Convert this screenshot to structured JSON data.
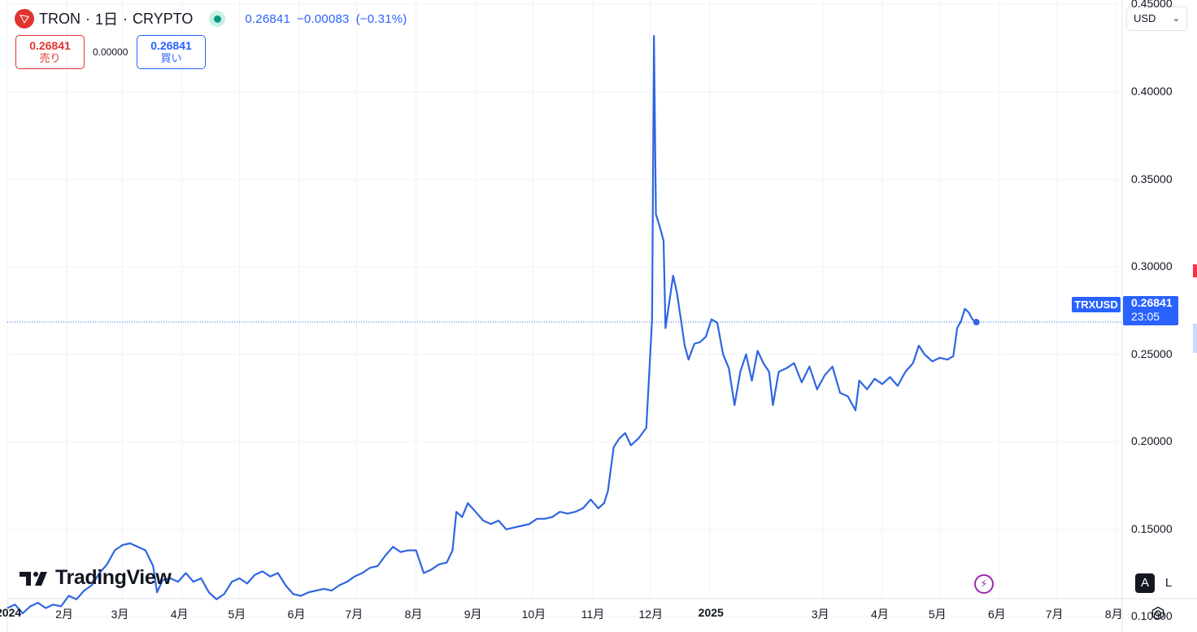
{
  "header": {
    "symbol": "TRON",
    "interval": "1日",
    "exchange": "CRYPTO",
    "separator": "·",
    "last": "0.26841",
    "change": "−0.00083",
    "change_pct": "(−0.31%)"
  },
  "trade": {
    "sell_price": "0.26841",
    "sell_label": "売り",
    "spread": "0.00000",
    "buy_price": "0.26841",
    "buy_label": "買い"
  },
  "currency": {
    "value": "USD",
    "chevron": "⌄"
  },
  "branding": {
    "name": "TradingView"
  },
  "price_tag": {
    "symbol": "TRXUSD",
    "price": "0.26841",
    "countdown": "23:05"
  },
  "scale_buttons": {
    "auto": "A",
    "log": "L"
  },
  "colors": {
    "line": "#2f66e0",
    "accent": "#2962ff",
    "sell": "#e0342f",
    "status_ok": "#089981",
    "grid": "#f0f3fa"
  },
  "icons": [
    "tron-logo-icon",
    "market-open-dot-icon",
    "chevron-down-icon",
    "tradingview-logo-icon",
    "lightning-icon",
    "gear-icon"
  ],
  "chart_data": {
    "type": "line",
    "series": [
      {
        "name": "TRXUSD",
        "points": [
          [
            "2024-01-01",
            0.105
          ],
          [
            "2024-01-05",
            0.107
          ],
          [
            "2024-01-09",
            0.102
          ],
          [
            "2024-01-13",
            0.106
          ],
          [
            "2024-01-17",
            0.108
          ],
          [
            "2024-01-21",
            0.105
          ],
          [
            "2024-01-25",
            0.107
          ],
          [
            "2024-01-29",
            0.106
          ],
          [
            "2024-02-02",
            0.112
          ],
          [
            "2024-02-06",
            0.11
          ],
          [
            "2024-02-10",
            0.115
          ],
          [
            "2024-02-14",
            0.118
          ],
          [
            "2024-02-18",
            0.125
          ],
          [
            "2024-02-22",
            0.13
          ],
          [
            "2024-02-26",
            0.138
          ],
          [
            "2024-03-01",
            0.141
          ],
          [
            "2024-03-05",
            0.142
          ],
          [
            "2024-03-09",
            0.14
          ],
          [
            "2024-03-13",
            0.138
          ],
          [
            "2024-03-17",
            0.129
          ],
          [
            "2024-03-19",
            0.114
          ],
          [
            "2024-03-22",
            0.121
          ],
          [
            "2024-03-26",
            0.122
          ],
          [
            "2024-03-30",
            0.12
          ],
          [
            "2024-04-03",
            0.125
          ],
          [
            "2024-04-07",
            0.12
          ],
          [
            "2024-04-11",
            0.122
          ],
          [
            "2024-04-15",
            0.114
          ],
          [
            "2024-04-19",
            0.11
          ],
          [
            "2024-04-23",
            0.113
          ],
          [
            "2024-04-27",
            0.12
          ],
          [
            "2024-05-01",
            0.122
          ],
          [
            "2024-05-05",
            0.119
          ],
          [
            "2024-05-09",
            0.124
          ],
          [
            "2024-05-13",
            0.126
          ],
          [
            "2024-05-17",
            0.123
          ],
          [
            "2024-05-21",
            0.125
          ],
          [
            "2024-05-25",
            0.118
          ],
          [
            "2024-05-29",
            0.113
          ],
          [
            "2024-06-02",
            0.112
          ],
          [
            "2024-06-06",
            0.114
          ],
          [
            "2024-06-10",
            0.115
          ],
          [
            "2024-06-14",
            0.116
          ],
          [
            "2024-06-18",
            0.115
          ],
          [
            "2024-06-22",
            0.118
          ],
          [
            "2024-06-26",
            0.12
          ],
          [
            "2024-06-30",
            0.123
          ],
          [
            "2024-07-04",
            0.125
          ],
          [
            "2024-07-08",
            0.128
          ],
          [
            "2024-07-12",
            0.129
          ],
          [
            "2024-07-16",
            0.135
          ],
          [
            "2024-07-20",
            0.14
          ],
          [
            "2024-07-24",
            0.137
          ],
          [
            "2024-07-28",
            0.138
          ],
          [
            "2024-08-01",
            0.138
          ],
          [
            "2024-08-05",
            0.125
          ],
          [
            "2024-08-09",
            0.127
          ],
          [
            "2024-08-13",
            0.13
          ],
          [
            "2024-08-17",
            0.131
          ],
          [
            "2024-08-20",
            0.138
          ],
          [
            "2024-08-22",
            0.16
          ],
          [
            "2024-08-25",
            0.157
          ],
          [
            "2024-08-28",
            0.165
          ],
          [
            "2024-09-01",
            0.16
          ],
          [
            "2024-09-05",
            0.155
          ],
          [
            "2024-09-09",
            0.153
          ],
          [
            "2024-09-13",
            0.155
          ],
          [
            "2024-09-17",
            0.15
          ],
          [
            "2024-09-21",
            0.151
          ],
          [
            "2024-09-25",
            0.152
          ],
          [
            "2024-09-29",
            0.153
          ],
          [
            "2024-10-03",
            0.156
          ],
          [
            "2024-10-07",
            0.156
          ],
          [
            "2024-10-11",
            0.157
          ],
          [
            "2024-10-15",
            0.16
          ],
          [
            "2024-10-19",
            0.159
          ],
          [
            "2024-10-23",
            0.16
          ],
          [
            "2024-10-27",
            0.162
          ],
          [
            "2024-10-31",
            0.167
          ],
          [
            "2024-11-04",
            0.162
          ],
          [
            "2024-11-07",
            0.165
          ],
          [
            "2024-11-09",
            0.172
          ],
          [
            "2024-11-12",
            0.197
          ],
          [
            "2024-11-15",
            0.202
          ],
          [
            "2024-11-18",
            0.205
          ],
          [
            "2024-11-21",
            0.198
          ],
          [
            "2024-11-25",
            0.202
          ],
          [
            "2024-11-29",
            0.208
          ],
          [
            "2024-12-02",
            0.27
          ],
          [
            "2024-12-03",
            0.432
          ],
          [
            "2024-12-04",
            0.33
          ],
          [
            "2024-12-06",
            0.323
          ],
          [
            "2024-12-08",
            0.315
          ],
          [
            "2024-12-09",
            0.265
          ],
          [
            "2024-12-11",
            0.28
          ],
          [
            "2024-12-13",
            0.295
          ],
          [
            "2024-12-15",
            0.285
          ],
          [
            "2024-12-17",
            0.27
          ],
          [
            "2024-12-19",
            0.255
          ],
          [
            "2024-12-21",
            0.247
          ],
          [
            "2024-12-24",
            0.256
          ],
          [
            "2024-12-27",
            0.257
          ],
          [
            "2024-12-30",
            0.26
          ],
          [
            "2025-01-02",
            0.27
          ],
          [
            "2025-01-05",
            0.268
          ],
          [
            "2025-01-08",
            0.25
          ],
          [
            "2025-01-11",
            0.242
          ],
          [
            "2025-01-14",
            0.221
          ],
          [
            "2025-01-17",
            0.24
          ],
          [
            "2025-01-20",
            0.25
          ],
          [
            "2025-01-23",
            0.235
          ],
          [
            "2025-01-26",
            0.252
          ],
          [
            "2025-01-29",
            0.245
          ],
          [
            "2025-02-01",
            0.24
          ],
          [
            "2025-02-03",
            0.221
          ],
          [
            "2025-02-06",
            0.24
          ],
          [
            "2025-02-10",
            0.242
          ],
          [
            "2025-02-14",
            0.245
          ],
          [
            "2025-02-18",
            0.234
          ],
          [
            "2025-02-22",
            0.243
          ],
          [
            "2025-02-26",
            0.23
          ],
          [
            "2025-03-02",
            0.238
          ],
          [
            "2025-03-06",
            0.243
          ],
          [
            "2025-03-10",
            0.228
          ],
          [
            "2025-03-14",
            0.226
          ],
          [
            "2025-03-18",
            0.218
          ],
          [
            "2025-03-20",
            0.235
          ],
          [
            "2025-03-24",
            0.23
          ],
          [
            "2025-03-28",
            0.236
          ],
          [
            "2025-04-01",
            0.233
          ],
          [
            "2025-04-05",
            0.237
          ],
          [
            "2025-04-09",
            0.232
          ],
          [
            "2025-04-13",
            0.24
          ],
          [
            "2025-04-17",
            0.245
          ],
          [
            "2025-04-20",
            0.255
          ],
          [
            "2025-04-23",
            0.25
          ],
          [
            "2025-04-27",
            0.246
          ],
          [
            "2025-05-01",
            0.248
          ],
          [
            "2025-05-05",
            0.247
          ],
          [
            "2025-05-08",
            0.249
          ],
          [
            "2025-05-10",
            0.265
          ],
          [
            "2025-05-12",
            0.269
          ],
          [
            "2025-05-14",
            0.276
          ],
          [
            "2025-05-16",
            0.274
          ],
          [
            "2025-05-18",
            0.27
          ],
          [
            "2025-05-20",
            0.2684
          ]
        ]
      }
    ],
    "x_axis_labels": [
      {
        "text": "2024",
        "date": "2024-01-01",
        "bold": true
      },
      {
        "text": "2月",
        "date": "2024-02-01"
      },
      {
        "text": "3月",
        "date": "2024-03-01"
      },
      {
        "text": "4月",
        "date": "2024-04-01"
      },
      {
        "text": "5月",
        "date": "2024-05-01"
      },
      {
        "text": "6月",
        "date": "2024-06-01"
      },
      {
        "text": "7月",
        "date": "2024-07-01"
      },
      {
        "text": "8月",
        "date": "2024-08-01"
      },
      {
        "text": "9月",
        "date": "2024-09-01"
      },
      {
        "text": "10月",
        "date": "2024-10-01"
      },
      {
        "text": "11月",
        "date": "2024-11-01"
      },
      {
        "text": "12月",
        "date": "2024-12-01"
      },
      {
        "text": "2025",
        "date": "2025-01-01",
        "bold": true
      },
      {
        "text": "3月",
        "date": "2025-03-01"
      },
      {
        "text": "4月",
        "date": "2025-04-01"
      },
      {
        "text": "5月",
        "date": "2025-05-01"
      },
      {
        "text": "6月",
        "date": "2025-06-01"
      },
      {
        "text": "7月",
        "date": "2025-07-01"
      },
      {
        "text": "8月",
        "date": "2025-08-01"
      }
    ],
    "y_ticks": [
      {
        "text": "0.10000",
        "value": 0.1
      },
      {
        "text": "0.15000",
        "value": 0.15
      },
      {
        "text": "0.20000",
        "value": 0.2
      },
      {
        "text": "0.25000",
        "value": 0.25
      },
      {
        "text": "0.30000",
        "value": 0.3
      },
      {
        "text": "0.35000",
        "value": 0.35
      },
      {
        "text": "0.40000",
        "value": 0.4
      },
      {
        "text": "0.45000",
        "value": 0.45
      }
    ],
    "xlim": [
      "2024-01-01",
      "2025-08-04"
    ],
    "ylim": [
      0.0955,
      0.4525
    ],
    "last_price": 0.26841,
    "grid": true
  }
}
